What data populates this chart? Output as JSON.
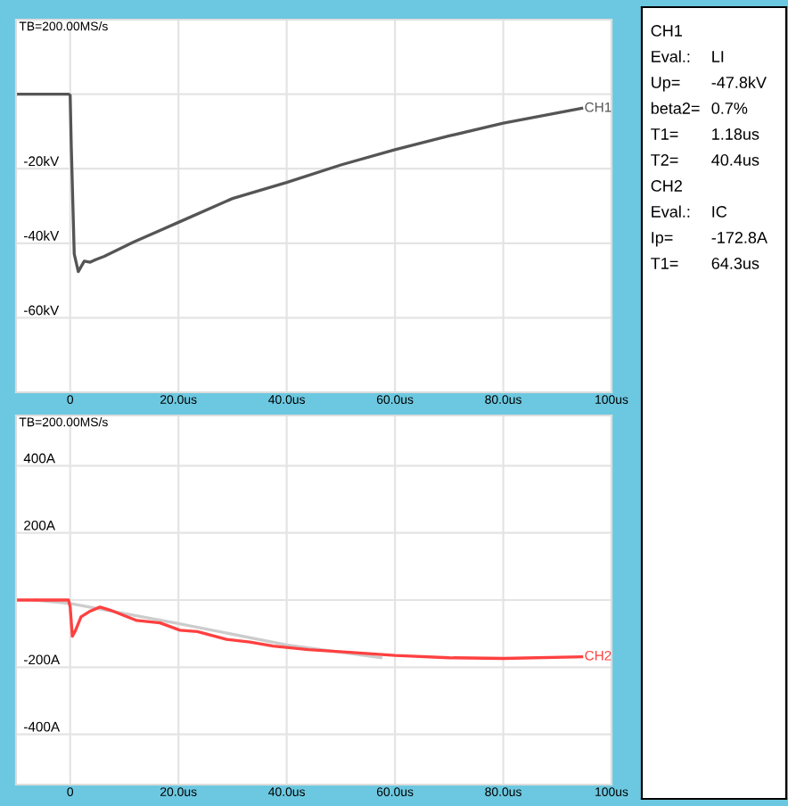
{
  "chart_data": [
    {
      "type": "line",
      "annotations": [
        "TB=200.00MS/s"
      ],
      "xlim": [
        -10,
        100
      ],
      "ylim": [
        -80,
        20
      ],
      "xticks": [
        {
          "value": 0,
          "label": "0"
        },
        {
          "value": 20,
          "label": "20.0us"
        },
        {
          "value": 40,
          "label": "40.0us"
        },
        {
          "value": 60,
          "label": "60.0us"
        },
        {
          "value": 80,
          "label": "80.0us"
        },
        {
          "value": 100,
          "label": "100us"
        }
      ],
      "yticks": [
        {
          "value": 0,
          "label": null
        },
        {
          "value": -20,
          "label": "-20kV"
        },
        {
          "value": -40,
          "label": "-40kV"
        },
        {
          "value": -60,
          "label": "-60kV"
        }
      ],
      "grid": true,
      "legend": false,
      "series": [
        {
          "name": "CH1",
          "color": "#555555",
          "x": [
            -10,
            -0.3,
            0,
            0.2,
            0.75,
            1.5,
            2.6,
            3.7,
            4.7,
            6.3,
            11.7,
            20,
            30,
            40,
            50,
            60,
            70,
            80,
            94.5
          ],
          "values": [
            0,
            0,
            -0.3,
            -13.8,
            -42.9,
            -47.6,
            -44.8,
            -45.1,
            -44.4,
            -43.5,
            -39.7,
            -34.4,
            -28,
            -23.7,
            -19,
            -14.9,
            -11.2,
            -7.8,
            -3.8
          ]
        }
      ]
    },
    {
      "type": "line",
      "annotations": [
        "TB=200.00MS/s"
      ],
      "xlim": [
        -10,
        100
      ],
      "ylim": [
        -550,
        550
      ],
      "xticks": [
        {
          "value": 0,
          "label": "0"
        },
        {
          "value": 20,
          "label": "20.0us"
        },
        {
          "value": 40,
          "label": "40.0us"
        },
        {
          "value": 60,
          "label": "60.0us"
        },
        {
          "value": 80,
          "label": "80.0us"
        },
        {
          "value": 100,
          "label": "100us"
        }
      ],
      "yticks": [
        {
          "value": 400,
          "label": "400A"
        },
        {
          "value": 200,
          "label": "200A"
        },
        {
          "value": 0,
          "label": null
        },
        {
          "value": -200,
          "label": "-200A"
        },
        {
          "value": -400,
          "label": "-400A"
        }
      ],
      "grid": true,
      "legend": false,
      "series": [
        {
          "color": "#cccccc",
          "x": [
            -6.6,
            0,
            20,
            40,
            57.4
          ],
          "values": [
            0,
            -10,
            -70,
            -134,
            -172
          ]
        },
        {
          "name": "CH2",
          "color": "#ff4040",
          "x": [
            -10,
            -0.3,
            0,
            0.4,
            1,
            2,
            3.7,
            5.5,
            7.4,
            12.3,
            16.6,
            20.3,
            23.5,
            28.9,
            33.2,
            37.5,
            44,
            51,
            60,
            70,
            80,
            94.5
          ],
          "values": [
            0,
            0,
            -21,
            -108,
            -90,
            -50,
            -33,
            -21,
            -30,
            -61,
            -68,
            -90,
            -94,
            -117,
            -125,
            -137,
            -148,
            -155,
            -165,
            -172,
            -174,
            -169
          ]
        }
      ]
    },
    {
      "type": "other",
      "annotations": [
        "CH1",
        "Eval.:\tLI",
        "Up=\t-47.8kV",
        "beta2=\t0.7%",
        "T1=\t1.18us",
        "T2=\t40.4us",
        "CH2",
        "Eval.:\tIC",
        "Ip=\t-172.8A",
        "T1=\t64.3us"
      ]
    }
  ]
}
